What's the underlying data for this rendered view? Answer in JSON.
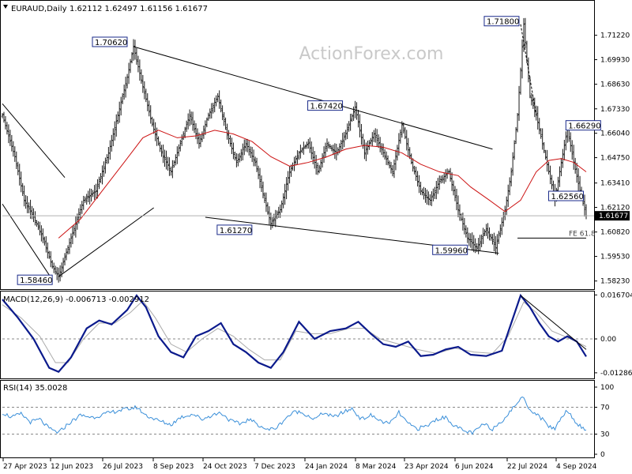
{
  "header": {
    "symbol_label": "EURAUD,Daily",
    "ohlc": "1.62112 1.62497 1.61156 1.61677",
    "watermark": "ActionForex.com"
  },
  "chart_data": [
    {
      "type": "bar",
      "name": "price",
      "ylim": [
        1.578,
        1.73
      ],
      "yticks": [
        "1.71220",
        "1.69930",
        "1.68630",
        "1.67330",
        "1.66040",
        "1.64750",
        "1.63410",
        "1.62120",
        "1.60820",
        "1.59530",
        "1.58230"
      ],
      "last_price": "1.61677",
      "xlabels": [
        "27 Apr 2023",
        "12 Jun 2023",
        "26 Jul 2023",
        "8 Sep 2023",
        "24 Oct 2023",
        "7 Dec 2023",
        "24 Jan 2024",
        "8 Mar 2024",
        "23 Apr 2024",
        "6 Jun 2024",
        "22 Jul 2024",
        "4 Sep 2024"
      ],
      "close_path": [
        [
          0,
          1.67
        ],
        [
          8,
          1.648
        ],
        [
          14,
          1.625
        ],
        [
          20,
          1.616
        ],
        [
          26,
          1.605
        ],
        [
          32,
          1.59
        ],
        [
          36,
          1.5846
        ],
        [
          44,
          1.605
        ],
        [
          52,
          1.625
        ],
        [
          60,
          1.63
        ],
        [
          68,
          1.65
        ],
        [
          74,
          1.67
        ],
        [
          80,
          1.69
        ],
        [
          84,
          1.7062
        ],
        [
          90,
          1.685
        ],
        [
          96,
          1.665
        ],
        [
          102,
          1.65
        ],
        [
          108,
          1.64
        ],
        [
          114,
          1.655
        ],
        [
          120,
          1.67
        ],
        [
          126,
          1.655
        ],
        [
          132,
          1.67
        ],
        [
          138,
          1.68
        ],
        [
          144,
          1.66
        ],
        [
          150,
          1.645
        ],
        [
          156,
          1.655
        ],
        [
          162,
          1.645
        ],
        [
          168,
          1.625
        ],
        [
          172,
          1.6127
        ],
        [
          178,
          1.62
        ],
        [
          184,
          1.64
        ],
        [
          190,
          1.65
        ],
        [
          196,
          1.655
        ],
        [
          202,
          1.64
        ],
        [
          208,
          1.655
        ],
        [
          214,
          1.65
        ],
        [
          220,
          1.66
        ],
        [
          226,
          1.6742
        ],
        [
          232,
          1.65
        ],
        [
          238,
          1.66
        ],
        [
          244,
          1.65
        ],
        [
          250,
          1.64
        ],
        [
          256,
          1.665
        ],
        [
          262,
          1.645
        ],
        [
          268,
          1.63
        ],
        [
          274,
          1.625
        ],
        [
          280,
          1.635
        ],
        [
          286,
          1.64
        ],
        [
          292,
          1.62
        ],
        [
          298,
          1.605
        ],
        [
          304,
          1.5996
        ],
        [
          310,
          1.61
        ],
        [
          316,
          1.6
        ],
        [
          322,
          1.62
        ],
        [
          326,
          1.64
        ],
        [
          330,
          1.67
        ],
        [
          334,
          1.718
        ],
        [
          338,
          1.68
        ],
        [
          342,
          1.67
        ],
        [
          346,
          1.655
        ],
        [
          350,
          1.64
        ],
        [
          354,
          1.6256
        ],
        [
          358,
          1.645
        ],
        [
          362,
          1.6629
        ],
        [
          366,
          1.645
        ],
        [
          370,
          1.63
        ],
        [
          374,
          1.6168
        ]
      ],
      "ma_path": [
        [
          36,
          1.605
        ],
        [
          50,
          1.615
        ],
        [
          64,
          1.63
        ],
        [
          78,
          1.645
        ],
        [
          90,
          1.658
        ],
        [
          100,
          1.662
        ],
        [
          112,
          1.658
        ],
        [
          124,
          1.659
        ],
        [
          136,
          1.662
        ],
        [
          148,
          1.66
        ],
        [
          160,
          1.656
        ],
        [
          172,
          1.648
        ],
        [
          184,
          1.643
        ],
        [
          196,
          1.645
        ],
        [
          208,
          1.648
        ],
        [
          220,
          1.652
        ],
        [
          232,
          1.654
        ],
        [
          244,
          1.653
        ],
        [
          256,
          1.65
        ],
        [
          268,
          1.644
        ],
        [
          280,
          1.64
        ],
        [
          292,
          1.638
        ],
        [
          300,
          1.632
        ],
        [
          312,
          1.625
        ],
        [
          322,
          1.619
        ],
        [
          332,
          1.625
        ],
        [
          342,
          1.64
        ],
        [
          350,
          1.646
        ],
        [
          358,
          1.647
        ],
        [
          366,
          1.645
        ],
        [
          374,
          1.64
        ]
      ],
      "trendlines": [
        {
          "from": [
            84,
            1.7062
          ],
          "to": [
            314,
            1.652
          ],
          "style": "solid"
        },
        {
          "from": [
            130,
            1.616
          ],
          "to": [
            318,
            1.597
          ],
          "style": "solid"
        },
        {
          "from": [
            36,
            1.5846
          ],
          "to": [
            97,
            1.621
          ],
          "style": "solid"
        },
        {
          "from": [
            0,
            1.676
          ],
          "to": [
            40,
            1.637
          ],
          "style": "solid"
        },
        {
          "from": [
            0,
            1.623
          ],
          "to": [
            30,
            1.5855
          ],
          "style": "solid"
        },
        {
          "from": [
            332,
            1.718
          ],
          "to": [
            342,
            1.67
          ],
          "style": "dashed"
        },
        {
          "from": [
            330,
            1.605
          ],
          "to": [
            374,
            1.605
          ],
          "style": "solid"
        }
      ],
      "annotations": [
        {
          "text": "1.70620",
          "x": 84,
          "y": 1.7062
        },
        {
          "text": "1.58460",
          "x": 36,
          "y": 1.5846
        },
        {
          "text": "1.61270",
          "x": 172,
          "y": 1.6127
        },
        {
          "text": "1.67420",
          "x": 226,
          "y": 1.6742
        },
        {
          "text": "1.59960",
          "x": 304,
          "y": 1.5996
        },
        {
          "text": "1.71800",
          "x": 334,
          "y": 1.718
        },
        {
          "text": "1.66290",
          "x": 362,
          "y": 1.6629
        },
        {
          "text": "1.62560",
          "x": 354,
          "y": 1.6256
        },
        {
          "text": "FE 61.8",
          "x": 374,
          "y": 1.605
        }
      ]
    },
    {
      "type": "line",
      "name": "macd",
      "title": "MACD(12,26,9) -0.006713 -0.002912",
      "ylim": [
        -0.015,
        0.018
      ],
      "yticks": [
        "0.016704",
        "0.00",
        "-0.012869"
      ],
      "macd_path": [
        [
          0,
          0.015
        ],
        [
          10,
          0.008
        ],
        [
          20,
          0.0
        ],
        [
          30,
          -0.011
        ],
        [
          36,
          -0.0125
        ],
        [
          44,
          -0.007
        ],
        [
          54,
          0.004
        ],
        [
          62,
          0.007
        ],
        [
          70,
          0.0055
        ],
        [
          80,
          0.011
        ],
        [
          86,
          0.0165
        ],
        [
          92,
          0.012
        ],
        [
          100,
          0.001
        ],
        [
          108,
          -0.005
        ],
        [
          116,
          -0.007
        ],
        [
          124,
          0.001
        ],
        [
          132,
          0.003
        ],
        [
          140,
          0.006
        ],
        [
          148,
          -0.002
        ],
        [
          156,
          -0.005
        ],
        [
          164,
          -0.009
        ],
        [
          172,
          -0.011
        ],
        [
          180,
          -0.005
        ],
        [
          190,
          0.0065
        ],
        [
          200,
          0.0
        ],
        [
          210,
          0.003
        ],
        [
          220,
          0.004
        ],
        [
          228,
          0.0065
        ],
        [
          236,
          0.002
        ],
        [
          244,
          -0.002
        ],
        [
          252,
          -0.003
        ],
        [
          260,
          -0.001
        ],
        [
          268,
          -0.0065
        ],
        [
          276,
          -0.006
        ],
        [
          284,
          -0.004
        ],
        [
          292,
          -0.003
        ],
        [
          300,
          -0.006
        ],
        [
          310,
          -0.0065
        ],
        [
          320,
          -0.0045
        ],
        [
          326,
          0.006
        ],
        [
          332,
          0.0165
        ],
        [
          338,
          0.012
        ],
        [
          344,
          0.006
        ],
        [
          350,
          0.001
        ],
        [
          356,
          -0.001
        ],
        [
          362,
          0.001
        ],
        [
          368,
          -0.001
        ],
        [
          374,
          -0.0067
        ]
      ],
      "signal_path": [
        [
          0,
          0.013
        ],
        [
          12,
          0.008
        ],
        [
          24,
          0.001
        ],
        [
          34,
          -0.009
        ],
        [
          42,
          -0.009
        ],
        [
          52,
          0.0
        ],
        [
          62,
          0.006
        ],
        [
          72,
          0.006
        ],
        [
          82,
          0.01
        ],
        [
          90,
          0.0145
        ],
        [
          98,
          0.008
        ],
        [
          108,
          -0.002
        ],
        [
          118,
          -0.005
        ],
        [
          128,
          0.0
        ],
        [
          138,
          0.004
        ],
        [
          148,
          0.001
        ],
        [
          158,
          -0.004
        ],
        [
          168,
          -0.008
        ],
        [
          178,
          -0.008
        ],
        [
          188,
          0.003
        ],
        [
          198,
          0.002
        ],
        [
          210,
          0.002
        ],
        [
          222,
          0.004
        ],
        [
          232,
          0.004
        ],
        [
          242,
          0.0
        ],
        [
          254,
          -0.002
        ],
        [
          266,
          -0.004
        ],
        [
          278,
          -0.0055
        ],
        [
          290,
          -0.0035
        ],
        [
          302,
          -0.005
        ],
        [
          314,
          -0.0055
        ],
        [
          324,
          0.001
        ],
        [
          334,
          0.014
        ],
        [
          342,
          0.01
        ],
        [
          352,
          0.003
        ],
        [
          362,
          0.0005
        ],
        [
          374,
          -0.0029
        ]
      ],
      "trendline": {
        "from": [
          332,
          0.0165
        ],
        "to": [
          374,
          -0.004
        ]
      }
    },
    {
      "type": "line",
      "name": "rsi",
      "title": "RSI(14) 35.0028",
      "ylim": [
        0,
        100
      ],
      "yticks": [
        "100",
        "70",
        "30",
        "0"
      ],
      "levels": [
        70,
        30
      ],
      "values_path": [
        [
          0,
          62
        ],
        [
          6,
          55
        ],
        [
          12,
          60
        ],
        [
          18,
          48
        ],
        [
          24,
          52
        ],
        [
          30,
          38
        ],
        [
          36,
          32
        ],
        [
          42,
          45
        ],
        [
          50,
          58
        ],
        [
          58,
          55
        ],
        [
          66,
          60
        ],
        [
          74,
          65
        ],
        [
          82,
          68
        ],
        [
          86,
          70
        ],
        [
          92,
          58
        ],
        [
          100,
          50
        ],
        [
          108,
          44
        ],
        [
          114,
          55
        ],
        [
          122,
          60
        ],
        [
          128,
          52
        ],
        [
          134,
          58
        ],
        [
          140,
          62
        ],
        [
          146,
          50
        ],
        [
          152,
          45
        ],
        [
          158,
          52
        ],
        [
          164,
          44
        ],
        [
          170,
          36
        ],
        [
          176,
          40
        ],
        [
          182,
          55
        ],
        [
          188,
          64
        ],
        [
          194,
          60
        ],
        [
          200,
          52
        ],
        [
          206,
          62
        ],
        [
          212,
          55
        ],
        [
          218,
          62
        ],
        [
          224,
          68
        ],
        [
          230,
          52
        ],
        [
          236,
          58
        ],
        [
          242,
          50
        ],
        [
          248,
          45
        ],
        [
          254,
          62
        ],
        [
          260,
          45
        ],
        [
          266,
          38
        ],
        [
          272,
          42
        ],
        [
          278,
          52
        ],
        [
          284,
          55
        ],
        [
          290,
          42
        ],
        [
          296,
          34
        ],
        [
          302,
          32
        ],
        [
          308,
          45
        ],
        [
          314,
          38
        ],
        [
          320,
          50
        ],
        [
          326,
          65
        ],
        [
          330,
          78
        ],
        [
          334,
          85
        ],
        [
          338,
          66
        ],
        [
          342,
          60
        ],
        [
          346,
          52
        ],
        [
          350,
          42
        ],
        [
          354,
          38
        ],
        [
          358,
          55
        ],
        [
          362,
          66
        ],
        [
          366,
          52
        ],
        [
          370,
          42
        ],
        [
          374,
          35
        ]
      ]
    }
  ]
}
